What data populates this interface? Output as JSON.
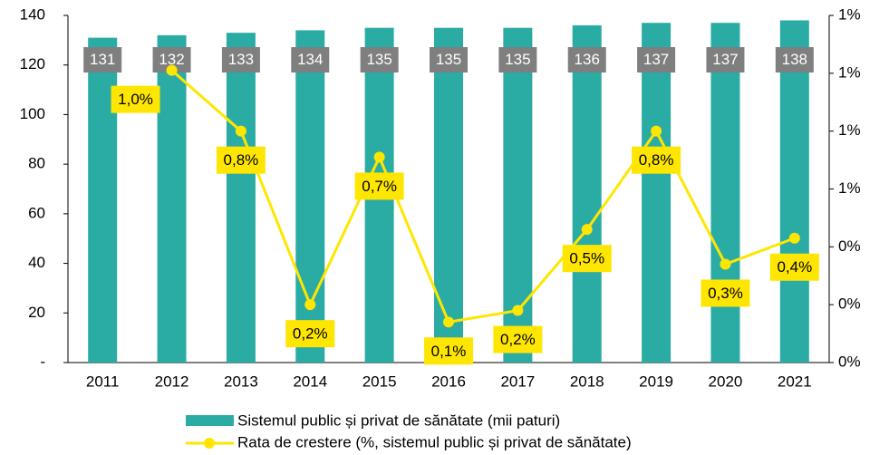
{
  "chart_data": {
    "type": "bar_line",
    "categories": [
      "2011",
      "2012",
      "2013",
      "2014",
      "2015",
      "2016",
      "2017",
      "2018",
      "2019",
      "2020",
      "2021"
    ],
    "series": [
      {
        "name": "Sistemul public și privat de sănătate (mii paturi)",
        "type": "bar",
        "color": "#2aaca4",
        "values": [
          131,
          132,
          133,
          134,
          135,
          135,
          135,
          136,
          137,
          137,
          138
        ]
      },
      {
        "name": "Rata de crestere (%, sistemul public și privat de sănătate)",
        "type": "line",
        "axis": "y2",
        "color": "#ffe600",
        "values": [
          null,
          1.01,
          0.8,
          0.2,
          0.71,
          0.14,
          0.18,
          0.46,
          0.8,
          0.34,
          0.43
        ],
        "value_labels": [
          null,
          "1,0%",
          "0,8%",
          "0,2%",
          "0,7%",
          "0,1%",
          "0,2%",
          "0,5%",
          "0,8%",
          "0,3%",
          "0,4%"
        ]
      }
    ],
    "ylim": [
      0,
      140
    ],
    "yticks": [
      {
        "value": 0,
        "label": "-"
      },
      20,
      40,
      60,
      80,
      100,
      120,
      140
    ],
    "y2lim": [
      0,
      1.2
    ],
    "y2ticks": [
      {
        "value": 0,
        "label": "0%"
      },
      {
        "value": 0.2,
        "label": "0%"
      },
      {
        "value": 0.4,
        "label": "0%"
      },
      {
        "value": 0.6,
        "label": "1%"
      },
      {
        "value": 0.8,
        "label": "1%"
      },
      {
        "value": 1.0,
        "label": "1%"
      },
      {
        "value": 1.2,
        "label": "1%"
      }
    ],
    "legend": "bottom"
  }
}
